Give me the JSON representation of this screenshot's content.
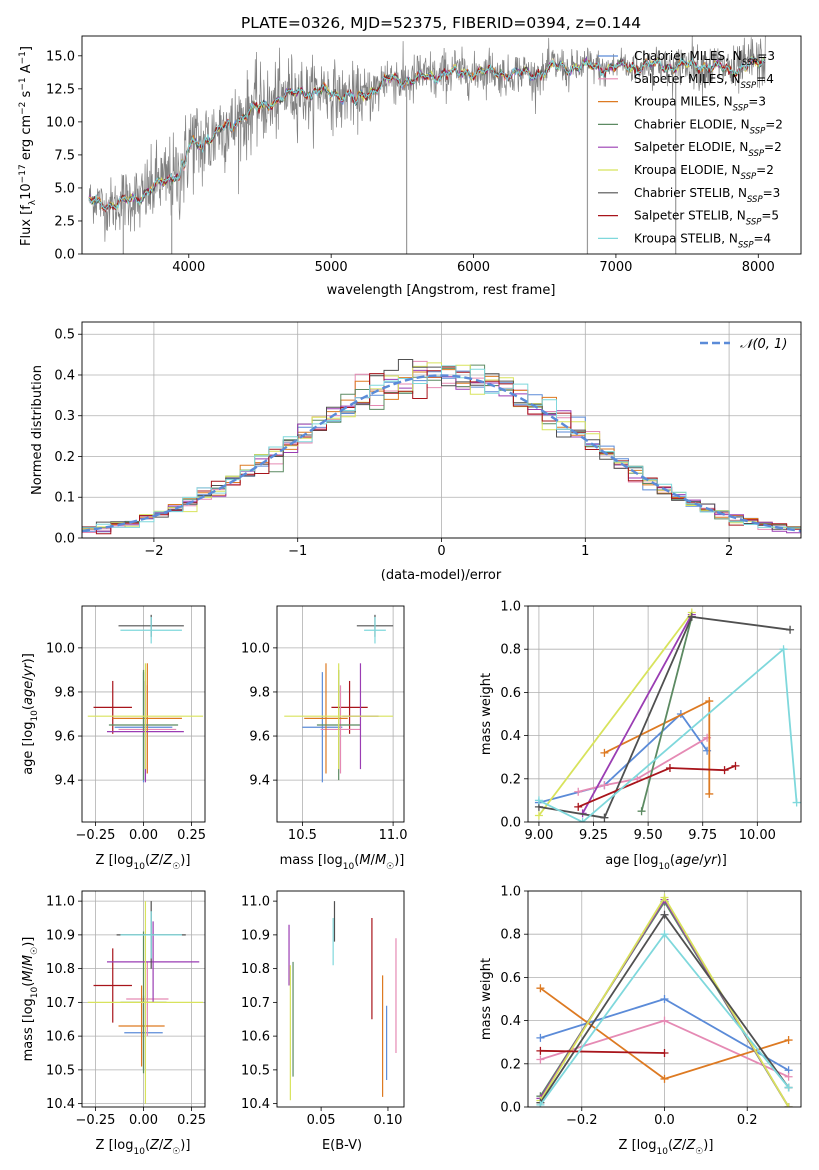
{
  "colors": {
    "Chabrier MILES": "#5b8bd8",
    "Salpeter MILES": "#e58ab4",
    "Kroupa MILES": "#dd7a22",
    "Chabrier ELODIE": "#5c8a62",
    "Salpeter ELODIE": "#9a3db3",
    "Kroupa ELODIE": "#d8e35c",
    "Chabrier STELIB": "#505050",
    "Salpeter STELIB": "#a8141b",
    "Kroupa STELIB": "#7fd8dc",
    "data": "#808080",
    "normal": "#5b8bd8"
  },
  "chart_data": [
    {
      "type": "line",
      "id": "spectrum",
      "title": "PLATE=0326, MJD=52375, FIBERID=0394, z=0.144",
      "xlabel": "wavelength [Angstrom, rest frame]",
      "ylabel": "Flux [fλ10⁻¹⁷ erg cm⁻² s⁻¹ A⁻¹]",
      "xlim": [
        3250,
        8300
      ],
      "ylim": [
        0,
        16.5
      ],
      "xticks": [
        "4000",
        "5000",
        "6000",
        "7000",
        "8000"
      ],
      "yticks": [
        "0.0",
        "2.5",
        "5.0",
        "7.5",
        "10.0",
        "12.5",
        "15.0"
      ],
      "grid": false,
      "legend_position": "top-right",
      "legend": [
        {
          "name": "Chabrier MILES",
          "sub": "SSP",
          "n": "3"
        },
        {
          "name": "Salpeter MILES",
          "sub": "SSP",
          "n": "4"
        },
        {
          "name": "Kroupa MILES",
          "sub": "SSP",
          "n": "3"
        },
        {
          "name": "Chabrier ELODIE",
          "sub": "SSP",
          "n": "2"
        },
        {
          "name": "Salpeter ELODIE",
          "sub": "SSP",
          "n": "2"
        },
        {
          "name": "Kroupa ELODIE",
          "sub": "SSP",
          "n": "2"
        },
        {
          "name": "Chabrier STELIB",
          "sub": "SSP",
          "n": "3"
        },
        {
          "name": "Salpeter STELIB",
          "sub": "SSP",
          "n": "5"
        },
        {
          "name": "Kroupa STELIB",
          "sub": "SSP",
          "n": "4"
        }
      ],
      "continuum": [
        [
          3300,
          4.0
        ],
        [
          3500,
          3.7
        ],
        [
          3700,
          4.6
        ],
        [
          3900,
          6.0
        ],
        [
          4000,
          8.0
        ],
        [
          4200,
          9.2
        ],
        [
          4400,
          10.6
        ],
        [
          4600,
          11.6
        ],
        [
          4800,
          12.4
        ],
        [
          5000,
          12.2
        ],
        [
          5200,
          11.8
        ],
        [
          5400,
          13.2
        ],
        [
          5600,
          13.2
        ],
        [
          5800,
          13.7
        ],
        [
          6000,
          13.8
        ],
        [
          6200,
          13.7
        ],
        [
          6400,
          13.6
        ],
        [
          6600,
          14.1
        ],
        [
          6800,
          14.2
        ],
        [
          7000,
          14.1
        ],
        [
          7200,
          14.3
        ],
        [
          7400,
          14.2
        ],
        [
          7600,
          14.3
        ],
        [
          7800,
          13.9
        ],
        [
          8050,
          14.6
        ]
      ],
      "observed_noise_sigma": [
        [
          3300,
          0.8
        ],
        [
          4000,
          1.8
        ],
        [
          5000,
          1.2
        ],
        [
          6000,
          0.8
        ],
        [
          7000,
          0.6
        ],
        [
          8000,
          1.0
        ]
      ],
      "bad_pixels_wavelength": [
        3540,
        3880,
        5530,
        6800,
        7420
      ]
    },
    {
      "type": "step",
      "id": "residuals",
      "xlabel": "(data-model)/error",
      "ylabel": "Normed distribution",
      "xlim": [
        -2.5,
        2.5
      ],
      "ylim": [
        0,
        0.53
      ],
      "xticks": [
        "−2",
        "−1",
        "0",
        "1",
        "2"
      ],
      "yticks": [
        "0.0",
        "0.1",
        "0.2",
        "0.3",
        "0.4",
        "0.5"
      ],
      "grid": true,
      "bin_width": 0.1,
      "legend_position": "top-right",
      "legend": "𝒩(0, 1)",
      "reference_curve": "normal(0,1)"
    },
    {
      "type": "scatter",
      "id": "z-age",
      "xlabel": "Z [log₁₀(Z/Z☉)]",
      "ylabel": "age  [log₁₀(age/yr)]",
      "xlim": [
        -0.32,
        0.32
      ],
      "ylim": [
        9.21,
        10.19
      ],
      "xticks": [
        "−0.25",
        "0.00",
        "0.25"
      ],
      "yticks": [
        "9.4",
        "9.6",
        "9.8",
        "10.0"
      ],
      "grid": true,
      "points": [
        {
          "series": "Salpeter STELIB",
          "x": -0.16,
          "y": 9.73,
          "xerr": 0.1,
          "yerr": 0.12
        },
        {
          "series": "Chabrier MILES",
          "x": 0.0,
          "y": 9.64,
          "xerr": 0.15,
          "yerr": 0.25
        },
        {
          "series": "Salpeter MILES",
          "x": 0.02,
          "y": 9.63,
          "xerr": 0.15,
          "yerr": 0.2
        },
        {
          "series": "Kroupa MILES",
          "x": 0.02,
          "y": 9.68,
          "xerr": 0.18,
          "yerr": 0.25
        },
        {
          "series": "Chabrier ELODIE",
          "x": 0.0,
          "y": 9.65,
          "xerr": 0.18,
          "yerr": 0.25
        },
        {
          "series": "Salpeter ELODIE",
          "x": 0.01,
          "y": 9.62,
          "xerr": 0.2,
          "yerr": 0.23
        },
        {
          "series": "Kroupa ELODIE",
          "x": 0.01,
          "y": 9.69,
          "xerr": 0.3,
          "yerr": 0.24
        },
        {
          "series": "Chabrier STELIB",
          "x": 0.04,
          "y": 10.1,
          "xerr": 0.17,
          "yerr": 0.05
        },
        {
          "series": "Kroupa STELIB",
          "x": 0.04,
          "y": 10.08,
          "xerr": 0.16,
          "yerr": 0.06
        }
      ]
    },
    {
      "type": "scatter",
      "id": "mass-age",
      "xlabel": "mass [log₁₀(M/M☉)]",
      "ylabel": "",
      "xlim": [
        10.36,
        11.06
      ],
      "ylim": [
        9.21,
        10.19
      ],
      "xticks": [
        "10.5",
        "11.0"
      ],
      "yticks": [
        "9.4",
        "9.6",
        "9.8",
        "10.0"
      ],
      "grid": true,
      "points": [
        {
          "series": "Salpeter STELIB",
          "x": 10.76,
          "y": 9.73,
          "xerr": 0.1,
          "yerr": 0.12
        },
        {
          "series": "Chabrier MILES",
          "x": 10.61,
          "y": 9.64,
          "xerr": 0.11,
          "yerr": 0.25
        },
        {
          "series": "Salpeter MILES",
          "x": 10.71,
          "y": 9.63,
          "xerr": 0.11,
          "yerr": 0.2
        },
        {
          "series": "Kroupa MILES",
          "x": 10.63,
          "y": 9.68,
          "xerr": 0.12,
          "yerr": 0.25
        },
        {
          "series": "Chabrier ELODIE",
          "x": 10.7,
          "y": 9.65,
          "xerr": 0.12,
          "yerr": 0.25
        },
        {
          "series": "Salpeter ELODIE",
          "x": 10.82,
          "y": 9.69,
          "xerr": 0.1,
          "yerr": 0.24
        },
        {
          "series": "Kroupa ELODIE",
          "x": 10.7,
          "y": 9.69,
          "xerr": 0.3,
          "yerr": 0.24
        },
        {
          "series": "Chabrier STELIB",
          "x": 10.9,
          "y": 10.1,
          "xerr": 0.1,
          "yerr": 0.05
        },
        {
          "series": "Kroupa STELIB",
          "x": 10.9,
          "y": 10.08,
          "xerr": 0.06,
          "yerr": 0.06
        }
      ]
    },
    {
      "type": "line",
      "id": "age-weight",
      "xlabel": "age  [log₁₀(age/yr)]",
      "ylabel": "mass weight",
      "xlim": [
        8.95,
        10.2
      ],
      "ylim": [
        0,
        1
      ],
      "xticks": [
        "9.00",
        "9.25",
        "9.50",
        "9.75",
        "10.00"
      ],
      "yticks": [
        "0.0",
        "0.2",
        "0.4",
        "0.6",
        "0.8",
        "1.0"
      ],
      "grid": true,
      "series": [
        {
          "name": "Chabrier MILES",
          "x": [
            9.0,
            9.3,
            9.65,
            9.77
          ],
          "y": [
            0.09,
            0.17,
            0.5,
            0.33
          ]
        },
        {
          "name": "Salpeter MILES",
          "x": [
            9.18,
            9.3,
            9.45,
            9.77
          ],
          "y": [
            0.14,
            0.17,
            0.2,
            0.39
          ]
        },
        {
          "name": "Kroupa MILES",
          "x": [
            9.3,
            9.78,
            9.78
          ],
          "y": [
            0.32,
            0.56,
            0.13
          ]
        },
        {
          "name": "Chabrier ELODIE",
          "x": [
            9.47,
            9.7
          ],
          "y": [
            0.05,
            0.95
          ]
        },
        {
          "name": "Salpeter ELODIE",
          "x": [
            9.2,
            9.7
          ],
          "y": [
            0.04,
            0.96
          ]
        },
        {
          "name": "Kroupa ELODIE",
          "x": [
            9.0,
            9.7
          ],
          "y": [
            0.03,
            0.97
          ]
        },
        {
          "name": "Chabrier STELIB",
          "x": [
            9.0,
            9.3,
            9.7,
            10.15
          ],
          "y": [
            0.07,
            0.02,
            0.95,
            0.89
          ]
        },
        {
          "name": "Salpeter STELIB",
          "x": [
            9.18,
            9.6,
            9.85,
            9.9
          ],
          "y": [
            0.07,
            0.25,
            0.24,
            0.26
          ]
        },
        {
          "name": "Kroupa STELIB",
          "x": [
            9.0,
            9.2,
            10.12,
            10.18
          ],
          "y": [
            0.1,
            0.0,
            0.8,
            0.09
          ]
        }
      ]
    },
    {
      "type": "scatter",
      "id": "z-mass",
      "xlabel": "Z [log₁₀(Z/Z☉)]",
      "ylabel": "mass [log₁₀(M/M☉)]",
      "xlim": [
        -0.32,
        0.32
      ],
      "ylim": [
        10.39,
        11.03
      ],
      "xticks": [
        "−0.25",
        "0.00",
        "0.25"
      ],
      "yticks": [
        "10.4",
        "10.5",
        "10.6",
        "10.7",
        "10.8",
        "10.9",
        "11.0"
      ],
      "grid": true,
      "points": [
        {
          "series": "Salpeter STELIB",
          "x": -0.16,
          "y": 10.75,
          "xerr": 0.1,
          "yerr": 0.11
        },
        {
          "series": "Chabrier MILES",
          "x": 0.0,
          "y": 10.61,
          "xerr": 0.1,
          "yerr": 0.11
        },
        {
          "series": "Salpeter MILES",
          "x": 0.02,
          "y": 10.71,
          "xerr": 0.11,
          "yerr": 0.11
        },
        {
          "series": "Kroupa MILES",
          "x": -0.01,
          "y": 10.63,
          "xerr": 0.12,
          "yerr": 0.12
        },
        {
          "series": "Chabrier ELODIE",
          "x": 0.0,
          "y": 10.7,
          "xerr": 0.12,
          "yerr": 0.21
        },
        {
          "series": "Salpeter ELODIE",
          "x": 0.05,
          "y": 10.82,
          "xerr": 0.24,
          "yerr": 0.12
        },
        {
          "series": "Kroupa ELODIE",
          "x": 0.01,
          "y": 10.7,
          "xerr": 0.3,
          "yerr": 0.3
        },
        {
          "series": "Chabrier STELIB",
          "x": 0.04,
          "y": 10.9,
          "xerr": 0.18,
          "yerr": 0.1
        },
        {
          "series": "Kroupa STELIB",
          "x": 0.04,
          "y": 10.9,
          "xerr": 0.16,
          "yerr": 0.07
        }
      ]
    },
    {
      "type": "errorbar",
      "id": "ebv-mass",
      "xlabel": "E(B-V)",
      "ylabel": "",
      "xlim": [
        0.017,
        0.112
      ],
      "ylim": [
        10.39,
        11.03
      ],
      "xticks": [
        "0.05",
        "0.10"
      ],
      "yticks": [
        "10.4",
        "10.5",
        "10.6",
        "10.7",
        "10.8",
        "10.9",
        "11.0"
      ],
      "grid": false,
      "points": [
        {
          "series": "Salpeter ELODIE",
          "x": 0.026,
          "y": 10.84,
          "yerr": 0.09
        },
        {
          "series": "Kroupa ELODIE",
          "x": 0.027,
          "y": 10.61,
          "yerr": 0.2
        },
        {
          "series": "Chabrier ELODIE",
          "x": 0.029,
          "y": 10.65,
          "yerr": 0.17
        },
        {
          "series": "Kroupa STELIB",
          "x": 0.059,
          "y": 10.88,
          "yerr": 0.07
        },
        {
          "series": "Chabrier STELIB",
          "x": 0.06,
          "y": 10.94,
          "yerr": 0.06
        },
        {
          "series": "Salpeter STELIB",
          "x": 0.088,
          "y": 10.8,
          "yerr": 0.15
        },
        {
          "series": "Kroupa MILES",
          "x": 0.096,
          "y": 10.6,
          "yerr": 0.18
        },
        {
          "series": "Chabrier MILES",
          "x": 0.099,
          "y": 10.58,
          "yerr": 0.11
        },
        {
          "series": "Salpeter MILES",
          "x": 0.106,
          "y": 10.72,
          "yerr": 0.17
        }
      ]
    },
    {
      "type": "line",
      "id": "z-weight",
      "xlabel": "Z [log₁₀(Z/Z☉)]",
      "ylabel": "mass weight",
      "xlim": [
        -0.33,
        0.33
      ],
      "ylim": [
        0,
        1
      ],
      "xticks": [
        "−0.2",
        "0.0",
        "0.2"
      ],
      "yticks": [
        "0.0",
        "0.2",
        "0.4",
        "0.6",
        "0.8",
        "1.0"
      ],
      "grid": true,
      "series": [
        {
          "name": "Chabrier MILES",
          "x": [
            -0.3,
            0.0,
            0.3
          ],
          "y": [
            0.32,
            0.5,
            0.17
          ]
        },
        {
          "name": "Salpeter MILES",
          "x": [
            -0.3,
            0.0,
            0.3
          ],
          "y": [
            0.22,
            0.4,
            0.14
          ]
        },
        {
          "name": "Kroupa MILES",
          "x": [
            -0.3,
            0.0,
            0.3
          ],
          "y": [
            0.55,
            0.13,
            0.31
          ]
        },
        {
          "name": "Chabrier ELODIE",
          "x": [
            -0.3,
            0.0,
            0.3
          ],
          "y": [
            0.05,
            0.95,
            0.0
          ]
        },
        {
          "name": "Salpeter ELODIE",
          "x": [
            -0.3,
            0.0,
            0.3
          ],
          "y": [
            0.04,
            0.96,
            0.0
          ]
        },
        {
          "name": "Kroupa ELODIE",
          "x": [
            -0.3,
            0.0,
            0.3
          ],
          "y": [
            0.03,
            0.97,
            0.0
          ]
        },
        {
          "name": "Chabrier STELIB",
          "x": [
            -0.3,
            0.0,
            0.3
          ],
          "y": [
            0.02,
            0.89,
            0.09
          ]
        },
        {
          "name": "Salpeter STELIB",
          "x": [
            -0.3,
            0.0
          ],
          "y": [
            0.26,
            0.25
          ]
        },
        {
          "name": "Kroupa STELIB",
          "x": [
            -0.3,
            0.0,
            0.3
          ],
          "y": [
            0.01,
            0.8,
            0.09
          ]
        }
      ]
    }
  ]
}
